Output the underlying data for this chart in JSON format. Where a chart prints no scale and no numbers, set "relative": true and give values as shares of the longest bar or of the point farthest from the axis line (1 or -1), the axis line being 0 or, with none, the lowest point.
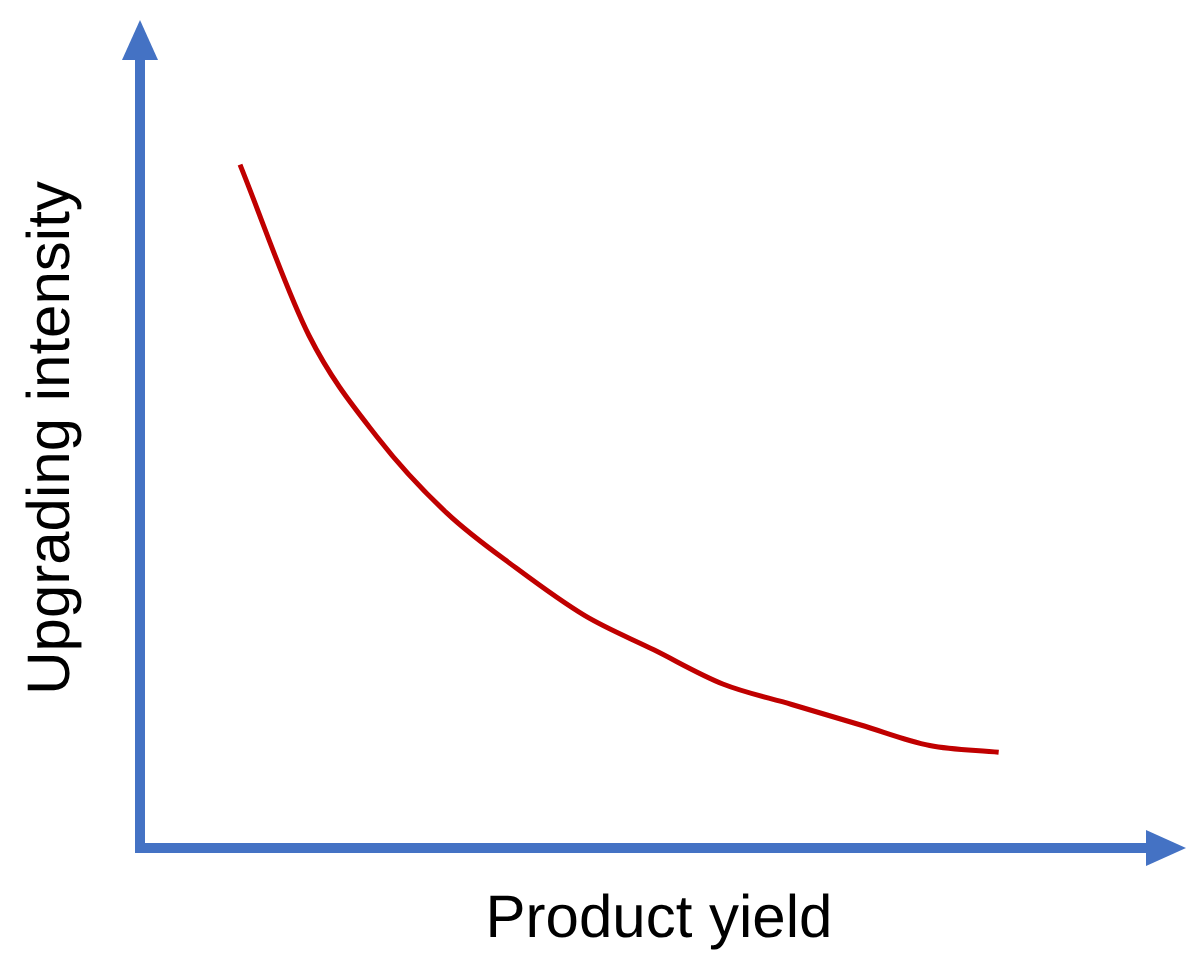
{
  "chart_data": {
    "type": "line",
    "xlabel": "Product yield",
    "ylabel": "Upgrading intensity",
    "relative": true,
    "categories": [
      null,
      null,
      null,
      null,
      null,
      null,
      null,
      null,
      null,
      null,
      null,
      null
    ],
    "series": [
      {
        "color": "#c00000",
        "values": [
          1.0,
          0.75,
          0.6,
          0.49,
          0.41,
          0.34,
          0.29,
          0.24,
          0.21,
          0.18,
          0.15,
          0.14
        ]
      }
    ],
    "grid": false,
    "legend": false,
    "marker": "none",
    "line_style": "solid"
  }
}
